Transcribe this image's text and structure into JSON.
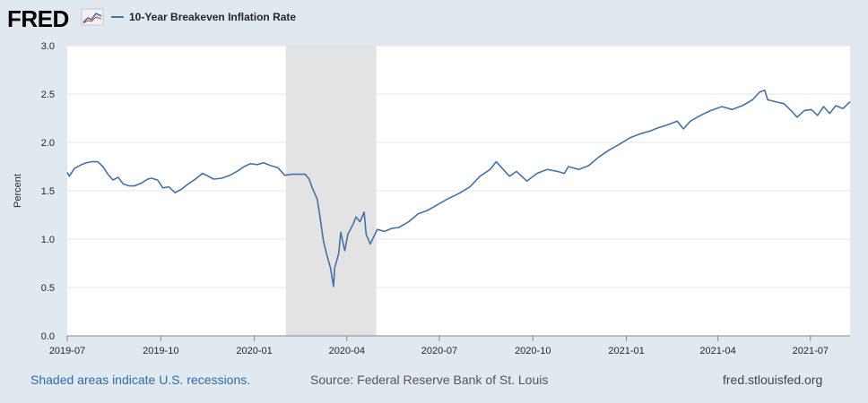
{
  "header": {
    "logo_text": "FRED",
    "logo_icon": "fred-graph-icon",
    "legend_label": "10-Year Breakeven Inflation Rate"
  },
  "footer": {
    "recessions_note": "Shaded areas indicate U.S. recessions.",
    "source": "Source: Federal Reserve Bank of St. Louis",
    "site": "fred.stlouisfed.org"
  },
  "colors": {
    "line": "#4572a7",
    "background": "#e1e9f0",
    "plot": "#ffffff",
    "recession": "#e3e3e3",
    "grid": "#e6e6e6"
  },
  "chart_data": {
    "type": "line",
    "title": "",
    "xlabel": "",
    "ylabel": "Percent",
    "ylim": [
      0.0,
      3.0
    ],
    "yticks": [
      "0.0",
      "0.5",
      "1.0",
      "1.5",
      "2.0",
      "2.5",
      "3.0"
    ],
    "xlim": [
      "2019-07-01",
      "2021-08-09"
    ],
    "xticks": [
      "2019-07",
      "2019-10",
      "2020-01",
      "2020-04",
      "2020-07",
      "2020-10",
      "2021-01",
      "2021-04",
      "2021-07"
    ],
    "grid": true,
    "legend": "top-left",
    "recession": {
      "start": "2020-02-01",
      "end": "2020-04-30"
    },
    "series": [
      {
        "name": "10-Year Breakeven Inflation Rate",
        "points": [
          [
            "2019-07-01",
            1.69
          ],
          [
            "2019-07-03",
            1.65
          ],
          [
            "2019-07-08",
            1.73
          ],
          [
            "2019-07-15",
            1.77
          ],
          [
            "2019-07-20",
            1.79
          ],
          [
            "2019-07-25",
            1.8
          ],
          [
            "2019-07-31",
            1.8
          ],
          [
            "2019-08-05",
            1.75
          ],
          [
            "2019-08-10",
            1.67
          ],
          [
            "2019-08-15",
            1.61
          ],
          [
            "2019-08-20",
            1.64
          ],
          [
            "2019-08-25",
            1.57
          ],
          [
            "2019-08-31",
            1.55
          ],
          [
            "2019-09-05",
            1.55
          ],
          [
            "2019-09-12",
            1.58
          ],
          [
            "2019-09-18",
            1.62
          ],
          [
            "2019-09-22",
            1.63
          ],
          [
            "2019-09-28",
            1.61
          ],
          [
            "2019-10-03",
            1.53
          ],
          [
            "2019-10-09",
            1.54
          ],
          [
            "2019-10-15",
            1.48
          ],
          [
            "2019-10-22",
            1.52
          ],
          [
            "2019-10-28",
            1.57
          ],
          [
            "2019-11-04",
            1.62
          ],
          [
            "2019-11-11",
            1.68
          ],
          [
            "2019-11-15",
            1.66
          ],
          [
            "2019-11-22",
            1.62
          ],
          [
            "2019-11-30",
            1.63
          ],
          [
            "2019-12-08",
            1.66
          ],
          [
            "2019-12-15",
            1.7
          ],
          [
            "2019-12-22",
            1.75
          ],
          [
            "2019-12-28",
            1.78
          ],
          [
            "2020-01-04",
            1.77
          ],
          [
            "2020-01-10",
            1.79
          ],
          [
            "2020-01-17",
            1.76
          ],
          [
            "2020-01-24",
            1.74
          ],
          [
            "2020-01-31",
            1.66
          ],
          [
            "2020-02-07",
            1.67
          ],
          [
            "2020-02-14",
            1.67
          ],
          [
            "2020-02-20",
            1.67
          ],
          [
            "2020-02-24",
            1.62
          ],
          [
            "2020-02-27",
            1.53
          ],
          [
            "2020-03-03",
            1.41
          ],
          [
            "2020-03-06",
            1.2
          ],
          [
            "2020-03-09",
            0.98
          ],
          [
            "2020-03-12",
            0.85
          ],
          [
            "2020-03-16",
            0.7
          ],
          [
            "2020-03-19",
            0.51
          ],
          [
            "2020-03-20",
            0.7
          ],
          [
            "2020-03-24",
            0.85
          ],
          [
            "2020-03-26",
            1.07
          ],
          [
            "2020-03-30",
            0.88
          ],
          [
            "2020-04-02",
            1.05
          ],
          [
            "2020-04-07",
            1.15
          ],
          [
            "2020-04-10",
            1.23
          ],
          [
            "2020-04-14",
            1.18
          ],
          [
            "2020-04-18",
            1.28
          ],
          [
            "2020-04-20",
            1.05
          ],
          [
            "2020-04-24",
            0.95
          ],
          [
            "2020-05-01",
            1.1
          ],
          [
            "2020-05-08",
            1.08
          ],
          [
            "2020-05-15",
            1.11
          ],
          [
            "2020-05-22",
            1.12
          ],
          [
            "2020-06-01",
            1.18
          ],
          [
            "2020-06-10",
            1.26
          ],
          [
            "2020-06-20",
            1.3
          ],
          [
            "2020-06-30",
            1.36
          ],
          [
            "2020-07-10",
            1.42
          ],
          [
            "2020-07-20",
            1.47
          ],
          [
            "2020-07-31",
            1.54
          ],
          [
            "2020-08-10",
            1.65
          ],
          [
            "2020-08-20",
            1.72
          ],
          [
            "2020-08-26",
            1.8
          ],
          [
            "2020-09-01",
            1.73
          ],
          [
            "2020-09-08",
            1.65
          ],
          [
            "2020-09-15",
            1.7
          ],
          [
            "2020-09-25",
            1.6
          ],
          [
            "2020-10-05",
            1.68
          ],
          [
            "2020-10-15",
            1.72
          ],
          [
            "2020-10-25",
            1.7
          ],
          [
            "2020-11-01",
            1.68
          ],
          [
            "2020-11-05",
            1.75
          ],
          [
            "2020-11-15",
            1.72
          ],
          [
            "2020-11-25",
            1.76
          ],
          [
            "2020-12-05",
            1.85
          ],
          [
            "2020-12-15",
            1.92
          ],
          [
            "2020-12-25",
            1.98
          ],
          [
            "2021-01-05",
            2.05
          ],
          [
            "2021-01-15",
            2.09
          ],
          [
            "2021-01-25",
            2.12
          ],
          [
            "2021-02-01",
            2.15
          ],
          [
            "2021-02-10",
            2.18
          ],
          [
            "2021-02-20",
            2.22
          ],
          [
            "2021-02-26",
            2.14
          ],
          [
            "2021-03-05",
            2.22
          ],
          [
            "2021-03-15",
            2.28
          ],
          [
            "2021-03-25",
            2.33
          ],
          [
            "2021-04-05",
            2.37
          ],
          [
            "2021-04-15",
            2.34
          ],
          [
            "2021-04-25",
            2.38
          ],
          [
            "2021-05-05",
            2.44
          ],
          [
            "2021-05-12",
            2.52
          ],
          [
            "2021-05-17",
            2.54
          ],
          [
            "2021-05-20",
            2.44
          ],
          [
            "2021-05-28",
            2.42
          ],
          [
            "2021-06-05",
            2.4
          ],
          [
            "2021-06-12",
            2.33
          ],
          [
            "2021-06-18",
            2.26
          ],
          [
            "2021-06-25",
            2.33
          ],
          [
            "2021-07-02",
            2.34
          ],
          [
            "2021-07-08",
            2.28
          ],
          [
            "2021-07-14",
            2.37
          ],
          [
            "2021-07-20",
            2.3
          ],
          [
            "2021-07-26",
            2.38
          ],
          [
            "2021-08-02",
            2.35
          ],
          [
            "2021-08-09",
            2.42
          ]
        ]
      }
    ]
  }
}
